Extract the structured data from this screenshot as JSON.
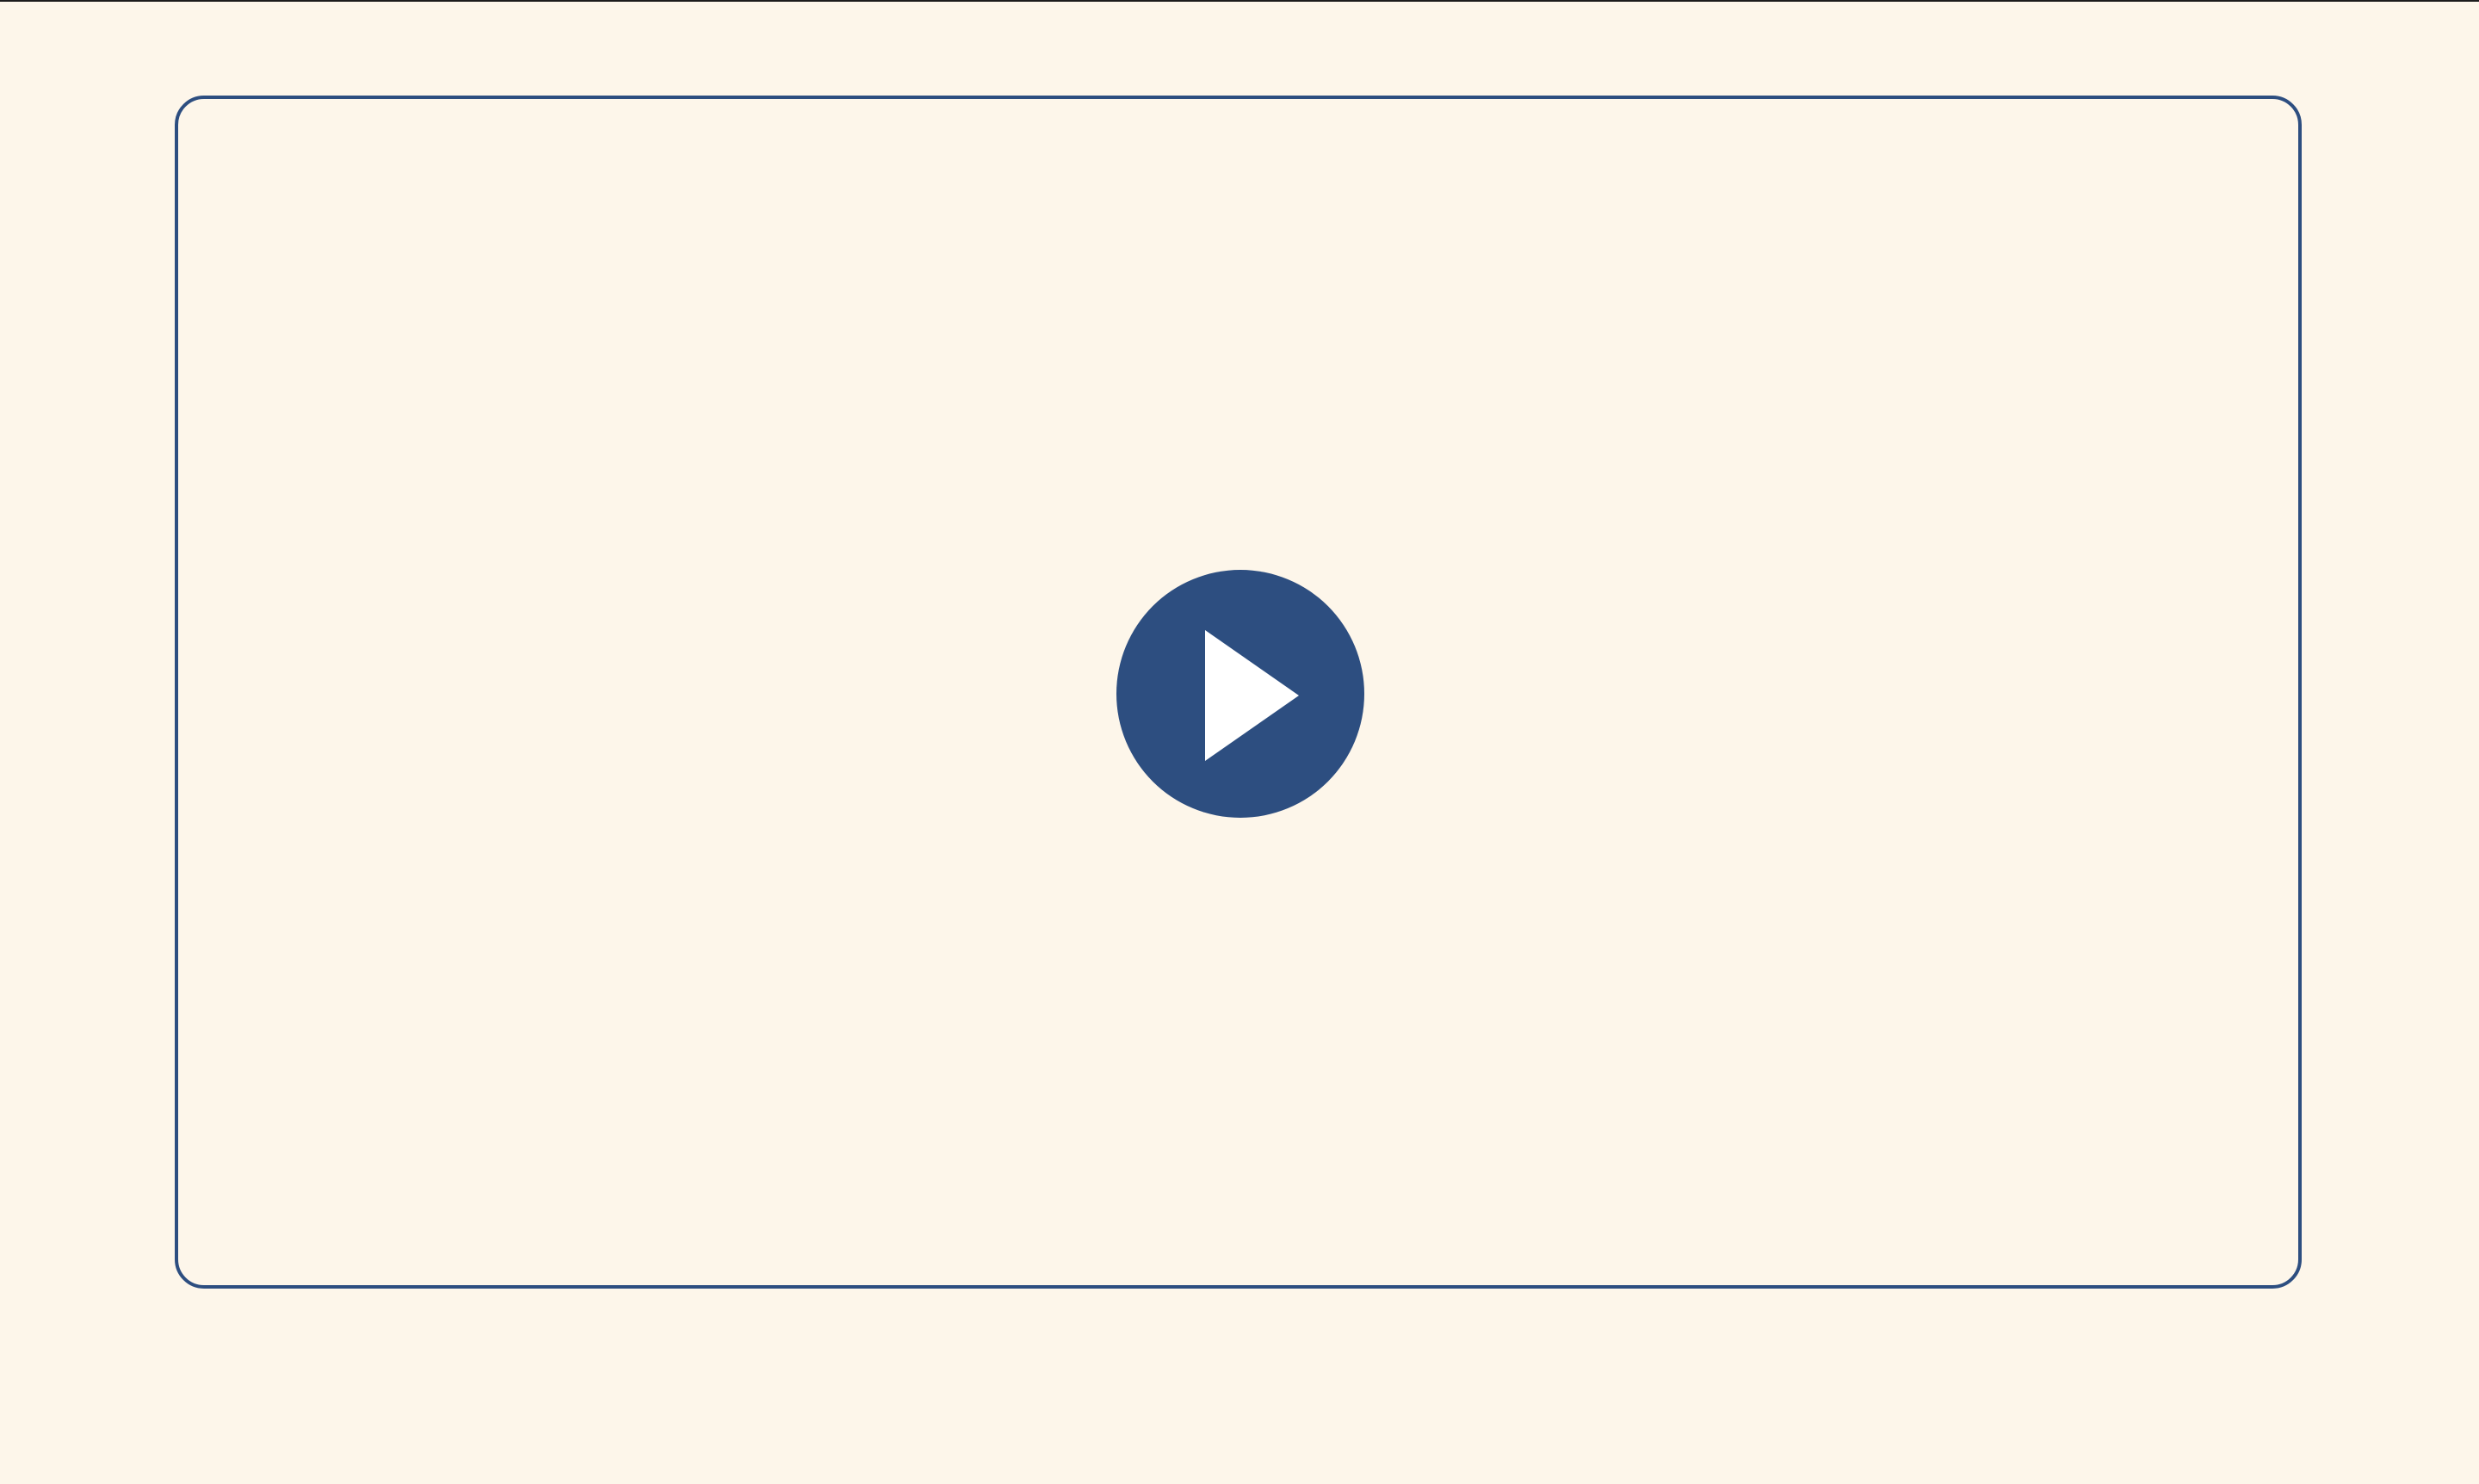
{
  "player": {
    "play_icon": "play-icon",
    "frame_color": "#2d4e80",
    "background_color": "#fdf6ea",
    "icon_color": "#ffffff"
  }
}
